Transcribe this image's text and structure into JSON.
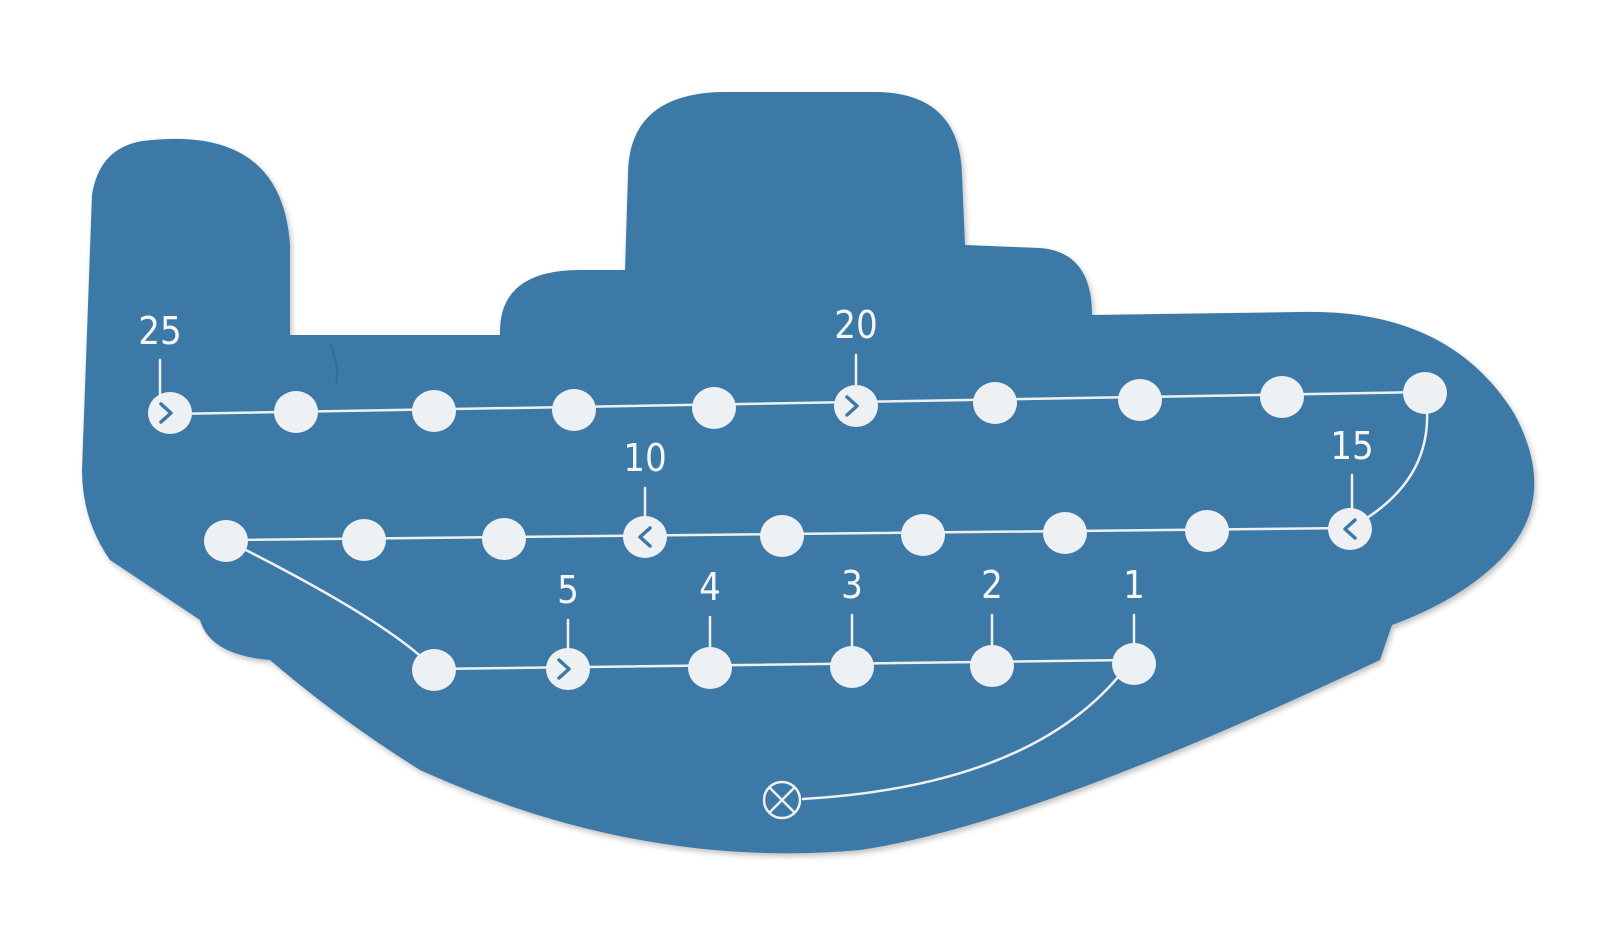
{
  "board": {
    "shape": "ship",
    "color": "#3d79a6",
    "marking_color": "#eef1f3",
    "counter_count": 25,
    "start_symbol": "circled-x",
    "labels": {
      "n1": "1",
      "n2": "2",
      "n3": "3",
      "n4": "4",
      "n5": "5",
      "n10": "10",
      "n15": "15",
      "n20": "20",
      "n25": "25"
    }
  }
}
